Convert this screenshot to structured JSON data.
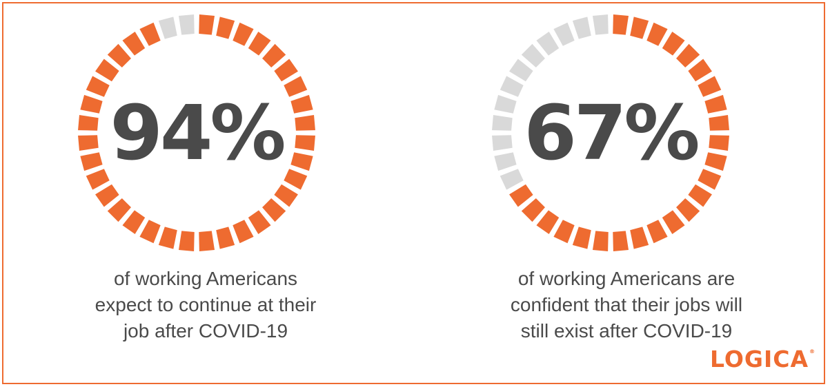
{
  "chart_data": [
    {
      "type": "pie",
      "value_percent": 94,
      "label": "94%",
      "caption_lines": [
        "of working Americans",
        "expect to continue at their",
        "job after COVID-19"
      ]
    },
    {
      "type": "pie",
      "value_percent": 67,
      "label": "67%",
      "caption_lines": [
        "of working Americans are",
        "confident that their jobs will",
        "still exist after COVID-19"
      ]
    }
  ],
  "colors": {
    "filled": "#ee6b30",
    "empty": "#d9d9d9",
    "text": "#4a4a4a",
    "border": "#ee6b30"
  },
  "brand": {
    "name": "LOGICA",
    "mark": "®"
  }
}
